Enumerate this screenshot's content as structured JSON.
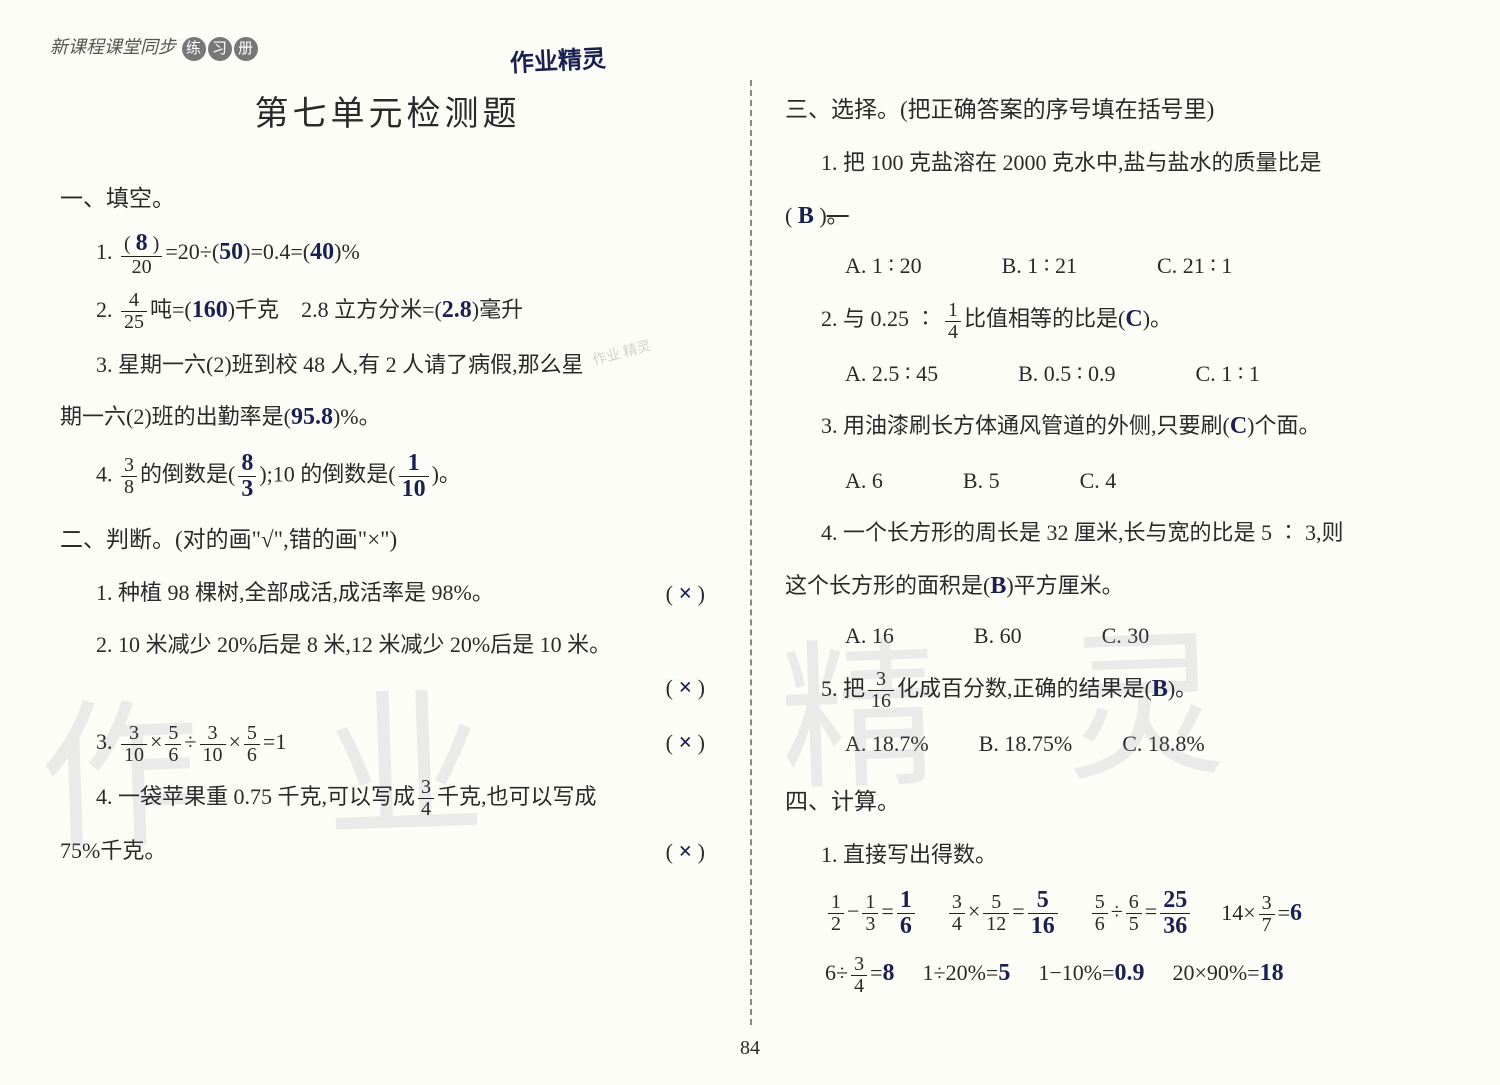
{
  "page_number": "84",
  "header": {
    "series": "新课程课堂同步",
    "pills": [
      "练",
      "习",
      "册"
    ]
  },
  "title": "第七单元检测题",
  "handwritten_header": "作业精灵",
  "watermark1": "作 业",
  "watermark2": "精 灵",
  "stamp": "作业\n精灵",
  "s1": {
    "head": "一、填空。",
    "q1": {
      "num": "1.",
      "ans1": "8",
      "denom": "20",
      "mid1": "=20÷(",
      "ans2": "50",
      "mid2": ")=0.4=(",
      "ans3": "40",
      "tail": ")%"
    },
    "q2": {
      "num": "2.",
      "fn": "4",
      "fd": "25",
      "t1": "吨=(",
      "a1": "160",
      "t2": ")千克",
      "sp": "    ",
      "t3": "2.8 立方分米=(",
      "a2": "2.8",
      "t4": ")毫升"
    },
    "q3": {
      "num": "3.",
      "line1": "星期一六(2)班到校 48 人,有 2 人请了病假,那么星",
      "line2_a": "期一六(2)班的出勤率是(",
      "ans": "95.8",
      "line2_b": ")%。"
    },
    "q4": {
      "num": "4.",
      "fn": "3",
      "fd": "8",
      "t1": "的倒数是(",
      "an1n": "8",
      "an1d": "3",
      "t2": ");10 的倒数是(",
      "an2n": "1",
      "an2d": "10",
      "t3": ")。"
    }
  },
  "s2": {
    "head": "二、判断。(对的画\"√\",错的画\"×\")",
    "q1": {
      "num": "1.",
      "text": "种植 98 棵树,全部成活,成活率是 98%。",
      "ans": "×"
    },
    "q2": {
      "num": "2.",
      "text": "10 米减少 20%后是 8 米,12 米减少 20%后是 10 米。",
      "ans": "×"
    },
    "q3": {
      "num": "3.",
      "f1n": "3",
      "f1d": "10",
      "f2n": "5",
      "f2d": "6",
      "f3n": "3",
      "f3d": "10",
      "f4n": "5",
      "f4d": "6",
      "tail": "=1",
      "ans": "×"
    },
    "q4": {
      "num": "4.",
      "t1": "一袋苹果重 0.75 千克,可以写成",
      "fn": "3",
      "fd": "4",
      "t2": "千克,也可以写成",
      "line2": "75%千克。",
      "ans": "×"
    }
  },
  "s3": {
    "head": "三、选择。(把正确答案的序号填在括号里)",
    "q1": {
      "num": "1.",
      "text": "把 100 克盐溶在 2000 克水中,盐与盐水的质量比是",
      "ans": "B",
      "tail": "。",
      "A": "A. 1 ∶ 20",
      "B": "B. 1 ∶ 21",
      "C": "C. 21 ∶ 1"
    },
    "q2": {
      "num": "2.",
      "t1": "与 0.25 ∶ ",
      "fn": "1",
      "fd": "4",
      "t2": "比值相等的比是(",
      "ans": "C",
      "t3": ")。",
      "A": "A. 2.5 ∶ 45",
      "B": "B. 0.5 ∶ 0.9",
      "C": "C. 1 ∶ 1"
    },
    "q3": {
      "num": "3.",
      "text": "用油漆刷长方体通风管道的外侧,只要刷(",
      "ans": "C",
      "tail": ")个面。",
      "A": "A. 6",
      "B": "B. 5",
      "C": "C. 4"
    },
    "q4": {
      "num": "4.",
      "line1": "一个长方形的周长是 32 厘米,长与宽的比是 5 ∶ 3,则",
      "line2a": "这个长方形的面积是(",
      "ans": "B",
      "line2b": ")平方厘米。",
      "A": "A. 16",
      "B": "B. 60",
      "C": "C. 30"
    },
    "q5": {
      "num": "5.",
      "t1": "把",
      "fn": "3",
      "fd": "16",
      "t2": "化成百分数,正确的结果是(",
      "ans": "B",
      "t3": ")。",
      "A": "A. 18.7%",
      "B": "B. 18.75%",
      "C": "C. 18.8%"
    }
  },
  "s4": {
    "head": "四、计算。",
    "sub1": "1. 直接写出得数。",
    "r1": [
      {
        "lhs_f1": {
          "n": "1",
          "d": "2"
        },
        "op": "−",
        "lhs_f2": {
          "n": "1",
          "d": "3"
        },
        "eq": "=",
        "ans": {
          "n": "1",
          "d": "6"
        }
      },
      {
        "lhs_f1": {
          "n": "3",
          "d": "4"
        },
        "op": "×",
        "lhs_f2": {
          "n": "5",
          "d": "12"
        },
        "eq": "=",
        "ans": {
          "n": "5",
          "d": "16"
        }
      },
      {
        "lhs_f1": {
          "n": "5",
          "d": "6"
        },
        "op": "÷",
        "lhs_f2": {
          "n": "6",
          "d": "5"
        },
        "eq": "=",
        "ans": {
          "n": "25",
          "d": "36"
        }
      },
      {
        "pre": "14×",
        "lhs_f1": {
          "n": "3",
          "d": "7"
        },
        "eq": "=",
        "ans_s": "6"
      }
    ],
    "r2": [
      {
        "pre": "6÷",
        "lhs_f1": {
          "n": "3",
          "d": "4"
        },
        "eq": "=",
        "ans_s": "8"
      },
      {
        "txt": "1÷20%=",
        "ans_s": "5"
      },
      {
        "txt": "1−10%=",
        "ans_s": "0.9"
      },
      {
        "txt": "20×90%=",
        "ans_s": "18"
      }
    ]
  },
  "colors": {
    "background": "#fdfdf8",
    "print_text": "#2a2a2a",
    "handwriting": "#1a2050",
    "watermark": "rgba(150,155,160,0.18)",
    "divider": "#888888"
  }
}
